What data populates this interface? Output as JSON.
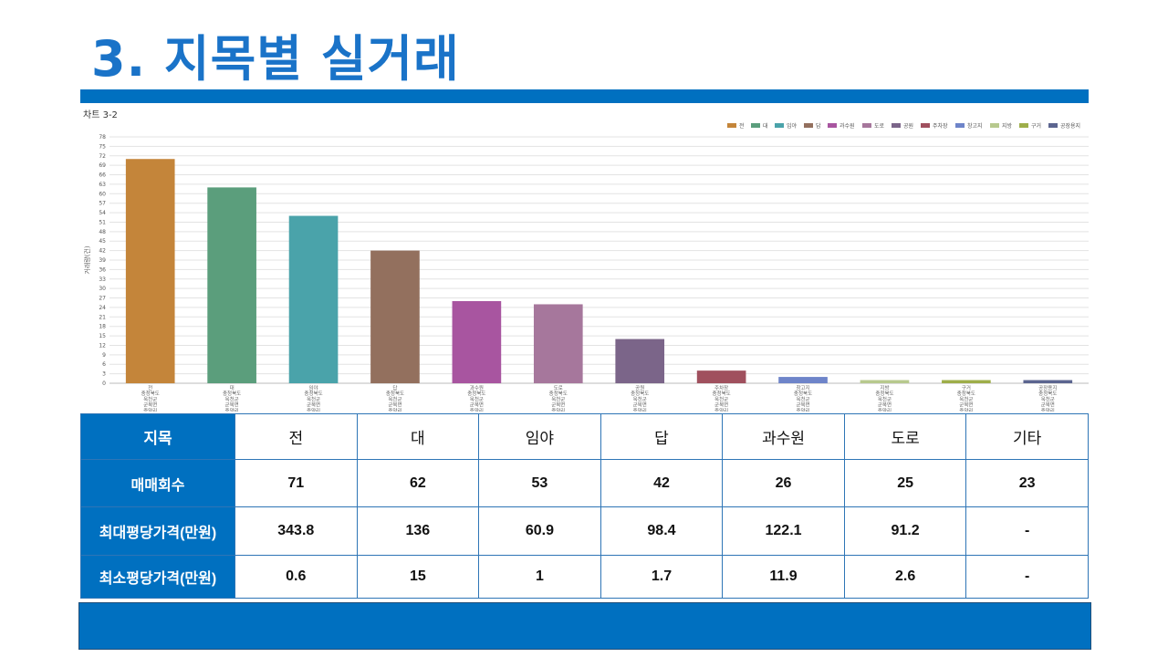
{
  "page": {
    "title": "3. 지목별 실거래",
    "chart_caption": "차트 3-2"
  },
  "chart_data": {
    "type": "bar",
    "categories": [
      "전",
      "대",
      "임야",
      "답",
      "과수원",
      "도로",
      "공원",
      "주차장",
      "창고지",
      "지방",
      "구거",
      "공장용지"
    ],
    "values": [
      71,
      62,
      53,
      42,
      26,
      25,
      14,
      4,
      2,
      1,
      1,
      1
    ],
    "ylim": [
      0,
      78
    ],
    "yticks": [
      0,
      3,
      6,
      9,
      12,
      15,
      18,
      21,
      24,
      27,
      30,
      33,
      36,
      39,
      42,
      45,
      48,
      51,
      54,
      57,
      60,
      63,
      66,
      69,
      72,
      75,
      78
    ],
    "ylabel": "거래량(건)",
    "xtick_sublabels": [
      "충청북도",
      "옥천군",
      "군북면",
      "증약리"
    ],
    "colors": [
      "#c4853a",
      "#5b9e7c",
      "#4aa3aa",
      "#93705e",
      "#a855a0",
      "#a6779c",
      "#7b6589",
      "#a0505e",
      "#6e84c9",
      "#b7c98e",
      "#9eae4a",
      "#5c6590"
    ],
    "legend_position": "top-right",
    "grid": true
  },
  "table": {
    "header_label": "지목",
    "columns": [
      "전",
      "대",
      "임야",
      "답",
      "과수원",
      "도로",
      "기타"
    ],
    "rows": [
      {
        "label": "매매회수",
        "values": [
          "71",
          "62",
          "53",
          "42",
          "26",
          "25",
          "23"
        ]
      },
      {
        "label": "최대평당가격(만원)",
        "values": [
          "343.8",
          "136",
          "60.9",
          "98.4",
          "122.1",
          "91.2",
          "-"
        ]
      },
      {
        "label": "최소평당가격(만원)",
        "values": [
          "0.6",
          "15",
          "1",
          "1.7",
          "11.9",
          "2.6",
          "-"
        ]
      }
    ]
  }
}
